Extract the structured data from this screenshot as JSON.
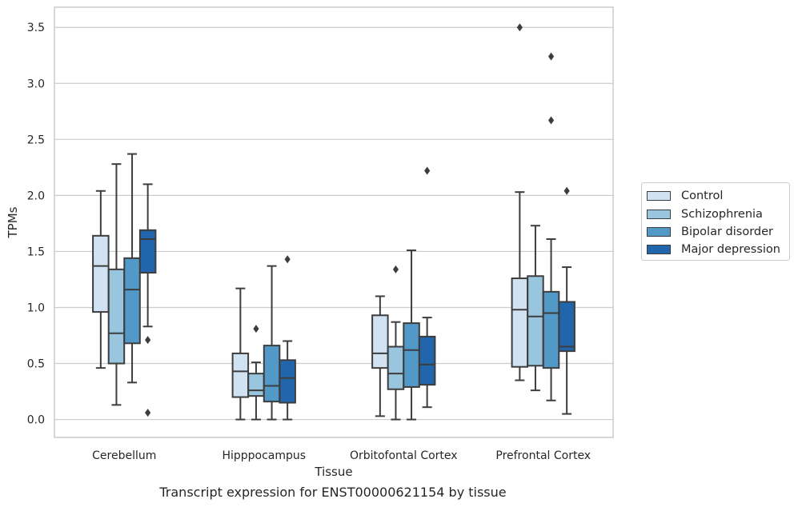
{
  "chart_data": {
    "type": "box",
    "caption": "Transcript expression for ENST00000621154 by tissue",
    "xlabel": "Tissue",
    "ylabel": "TPMs",
    "ylim": [
      -0.16,
      3.68
    ],
    "yticks": [
      "0.0",
      "0.5",
      "1.0",
      "1.5",
      "2.0",
      "2.5",
      "3.0",
      "3.5"
    ],
    "grid": true,
    "legend_position": "right-outside",
    "categories": [
      "Cerebellum",
      "Hipppocampus",
      "Orbitofontal Cortex",
      "Prefrontal Cortex"
    ],
    "series": [
      {
        "name": "Control",
        "color": "#d1e2f2",
        "boxes": [
          {
            "whislo": 0.46,
            "q1": 0.96,
            "med": 1.37,
            "q3": 1.64,
            "whishi": 2.04,
            "fliers": []
          },
          {
            "whislo": 0.0,
            "q1": 0.2,
            "med": 0.43,
            "q3": 0.59,
            "whishi": 1.17,
            "fliers": []
          },
          {
            "whislo": 0.03,
            "q1": 0.46,
            "med": 0.59,
            "q3": 0.93,
            "whishi": 1.1,
            "fliers": []
          },
          {
            "whislo": 0.35,
            "q1": 0.47,
            "med": 0.98,
            "q3": 1.26,
            "whishi": 2.03,
            "fliers": [
              3.5
            ]
          }
        ]
      },
      {
        "name": "Schizophrenia",
        "color": "#9ac5de",
        "boxes": [
          {
            "whislo": 0.13,
            "q1": 0.5,
            "med": 0.77,
            "q3": 1.34,
            "whishi": 2.28,
            "fliers": []
          },
          {
            "whislo": 0.0,
            "q1": 0.21,
            "med": 0.26,
            "q3": 0.41,
            "whishi": 0.51,
            "fliers": [
              0.81
            ]
          },
          {
            "whislo": 0.0,
            "q1": 0.27,
            "med": 0.41,
            "q3": 0.65,
            "whishi": 0.87,
            "fliers": [
              1.34
            ]
          },
          {
            "whislo": 0.26,
            "q1": 0.48,
            "med": 0.92,
            "q3": 1.28,
            "whishi": 1.73,
            "fliers": []
          }
        ]
      },
      {
        "name": "Bipolar disorder",
        "color": "#5299c8",
        "boxes": [
          {
            "whislo": 0.33,
            "q1": 0.68,
            "med": 1.16,
            "q3": 1.44,
            "whishi": 2.37,
            "fliers": []
          },
          {
            "whislo": 0.0,
            "q1": 0.16,
            "med": 0.3,
            "q3": 0.66,
            "whishi": 1.37,
            "fliers": []
          },
          {
            "whislo": 0.0,
            "q1": 0.29,
            "med": 0.62,
            "q3": 0.86,
            "whishi": 1.51,
            "fliers": []
          },
          {
            "whislo": 0.17,
            "q1": 0.46,
            "med": 0.95,
            "q3": 1.14,
            "whishi": 1.61,
            "fliers": [
              2.67,
              3.24
            ]
          }
        ]
      },
      {
        "name": "Major depression",
        "color": "#2166ac",
        "boxes": [
          {
            "whislo": 0.83,
            "q1": 1.31,
            "med": 1.61,
            "q3": 1.69,
            "whishi": 2.1,
            "fliers": [
              0.71,
              0.06
            ]
          },
          {
            "whislo": 0.0,
            "q1": 0.15,
            "med": 0.37,
            "q3": 0.53,
            "whishi": 0.7,
            "fliers": [
              1.43
            ]
          },
          {
            "whislo": 0.11,
            "q1": 0.31,
            "med": 0.49,
            "q3": 0.74,
            "whishi": 0.91,
            "fliers": [
              2.22
            ]
          },
          {
            "whislo": 0.05,
            "q1": 0.61,
            "med": 0.65,
            "q3": 1.05,
            "whishi": 1.36,
            "fliers": [
              2.04
            ]
          }
        ]
      }
    ]
  }
}
